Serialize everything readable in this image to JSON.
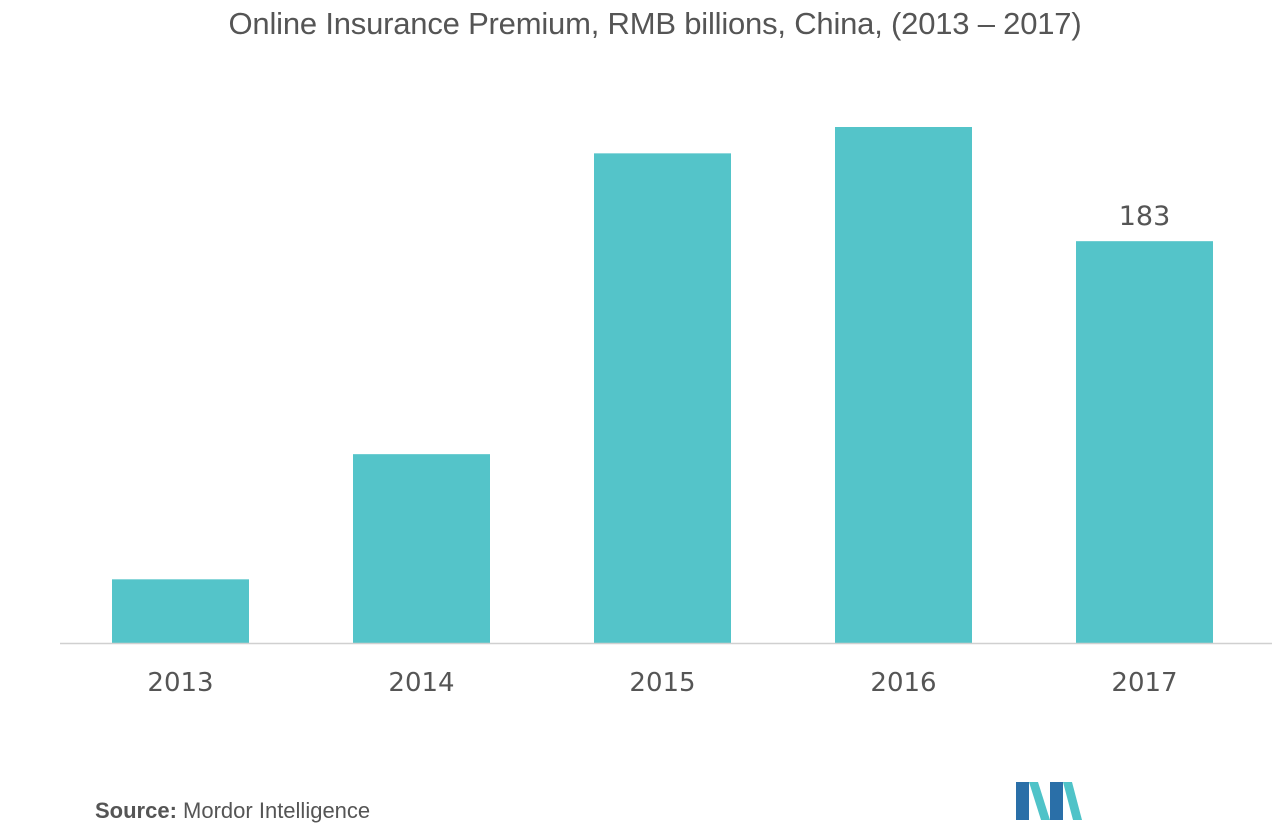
{
  "chart_data": {
    "type": "bar",
    "title": "Online Insurance Premium, RMB billions, China, (2013 – 2017)",
    "categories": [
      "2013",
      "2014",
      "2015",
      "2016",
      "2017"
    ],
    "values": [
      29,
      86,
      223,
      235,
      183
    ],
    "data_labels": [
      "",
      "",
      "",
      "",
      "183"
    ],
    "xlabel": "",
    "ylabel": "",
    "ylim": [
      0,
      250
    ],
    "grid": false,
    "bar_color": "#54c4c9"
  },
  "source": {
    "label": "Source:",
    "text": "Mordor Intelligence"
  },
  "colors": {
    "text": "#555555",
    "axis": "#d0d0d0",
    "logo_dark": "#2a6fa8",
    "logo_light": "#4fc3c8"
  },
  "logo": {
    "icon": "mordor-intelligence-logo-icon"
  }
}
